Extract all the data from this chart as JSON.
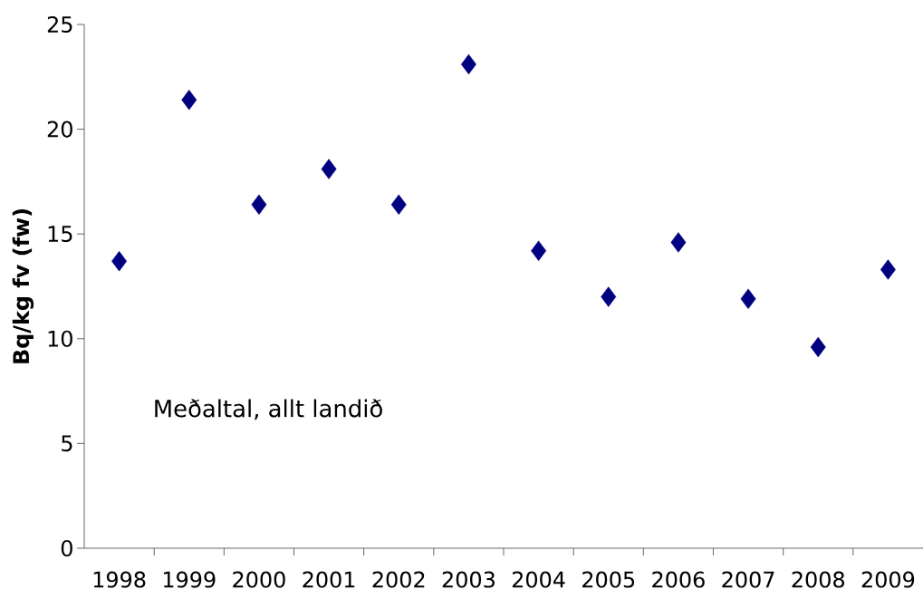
{
  "chart_data": {
    "type": "scatter",
    "ylabel": "Bq/kg fv (fw)",
    "annotations": [
      "Meðaltal, allt landið"
    ],
    "categories": [
      "1998",
      "1999",
      "2000",
      "2001",
      "2002",
      "2003",
      "2004",
      "2005",
      "2006",
      "2007",
      "2008",
      "2009"
    ],
    "values": [
      13.7,
      21.4,
      16.4,
      18.1,
      16.4,
      23.1,
      14.2,
      12.0,
      14.6,
      11.9,
      9.6,
      13.3
    ],
    "color": "#000080",
    "marker": "diamond",
    "ylim": [
      0,
      25
    ],
    "yticks": [
      0,
      5,
      10,
      15,
      20,
      25
    ]
  }
}
